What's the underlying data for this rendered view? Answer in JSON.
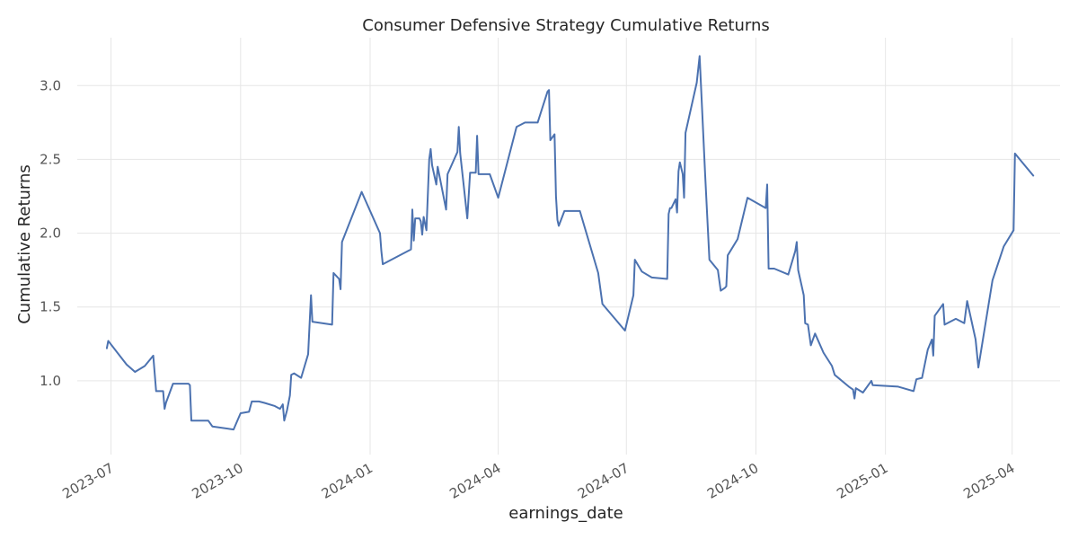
{
  "chart_data": {
    "type": "line",
    "title": "Consumer Defensive Strategy Cumulative Returns",
    "xlabel": "earnings_date",
    "ylabel": "Cumulative Returns",
    "x_tick_labels": [
      "2023-07",
      "2023-10",
      "2024-01",
      "2024-04",
      "2024-07",
      "2024-10",
      "2025-01",
      "2025-04"
    ],
    "y_tick_labels": [
      "1.0",
      "1.5",
      "2.0",
      "2.5",
      "3.0"
    ],
    "xlim": [
      "2023-06-07",
      "2025-05-05"
    ],
    "ylim": [
      0.5,
      3.3
    ],
    "y_ticks": [
      1.0,
      1.5,
      2.0,
      2.5,
      3.0
    ],
    "grid": true,
    "line_color": "#4c72b0",
    "series": [
      {
        "points": [
          [
            "2023-06-28",
            1.22
          ],
          [
            "2023-06-29",
            1.27
          ],
          [
            "2023-07-12",
            1.11
          ],
          [
            "2023-07-18",
            1.06
          ],
          [
            "2023-07-25",
            1.1
          ],
          [
            "2023-07-31",
            1.17
          ],
          [
            "2023-08-02",
            0.93
          ],
          [
            "2023-08-04",
            0.93
          ],
          [
            "2023-08-07",
            0.93
          ],
          [
            "2023-08-08",
            0.81
          ],
          [
            "2023-08-09",
            0.85
          ],
          [
            "2023-08-14",
            0.98
          ],
          [
            "2023-08-25",
            0.98
          ],
          [
            "2023-08-26",
            0.97
          ],
          [
            "2023-08-27",
            0.73
          ],
          [
            "2023-09-08",
            0.73
          ],
          [
            "2023-09-11",
            0.69
          ],
          [
            "2023-09-26",
            0.67
          ],
          [
            "2023-10-01",
            0.78
          ],
          [
            "2023-10-07",
            0.79
          ],
          [
            "2023-10-09",
            0.86
          ],
          [
            "2023-10-14",
            0.86
          ],
          [
            "2023-10-18",
            0.85
          ],
          [
            "2023-10-25",
            0.83
          ],
          [
            "2023-10-29",
            0.81
          ],
          [
            "2023-10-31",
            0.84
          ],
          [
            "2023-11-01",
            0.73
          ],
          [
            "2023-11-03",
            0.8
          ],
          [
            "2023-11-05",
            0.9
          ],
          [
            "2023-11-06",
            1.04
          ],
          [
            "2023-11-08",
            1.05
          ],
          [
            "2023-11-13",
            1.02
          ],
          [
            "2023-11-18",
            1.18
          ],
          [
            "2023-11-20",
            1.58
          ],
          [
            "2023-11-21",
            1.4
          ],
          [
            "2023-12-05",
            1.38
          ],
          [
            "2023-12-06",
            1.73
          ],
          [
            "2023-12-10",
            1.69
          ],
          [
            "2023-12-11",
            1.62
          ],
          [
            "2023-12-12",
            1.94
          ],
          [
            "2023-12-26",
            2.28
          ],
          [
            "2024-01-08",
            2.0
          ],
          [
            "2024-01-09",
            1.88
          ],
          [
            "2024-01-10",
            1.79
          ],
          [
            "2024-01-30",
            1.89
          ],
          [
            "2024-01-31",
            2.16
          ],
          [
            "2024-02-01",
            1.95
          ],
          [
            "2024-02-02",
            2.1
          ],
          [
            "2024-02-05",
            2.1
          ],
          [
            "2024-02-06",
            2.08
          ],
          [
            "2024-02-07",
            1.99
          ],
          [
            "2024-02-08",
            2.11
          ],
          [
            "2024-02-10",
            2.02
          ],
          [
            "2024-02-12",
            2.5
          ],
          [
            "2024-02-13",
            2.57
          ],
          [
            "2024-02-14",
            2.46
          ],
          [
            "2024-02-17",
            2.33
          ],
          [
            "2024-02-18",
            2.45
          ],
          [
            "2024-02-24",
            2.16
          ],
          [
            "2024-02-25",
            2.4
          ],
          [
            "2024-03-03",
            2.55
          ],
          [
            "2024-03-04",
            2.72
          ],
          [
            "2024-03-05",
            2.54
          ],
          [
            "2024-03-10",
            2.1
          ],
          [
            "2024-03-12",
            2.41
          ],
          [
            "2024-03-16",
            2.41
          ],
          [
            "2024-03-17",
            2.66
          ],
          [
            "2024-03-18",
            2.4
          ],
          [
            "2024-03-26",
            2.4
          ],
          [
            "2024-04-01",
            2.24
          ],
          [
            "2024-04-14",
            2.72
          ],
          [
            "2024-04-20",
            2.75
          ],
          [
            "2024-04-29",
            2.75
          ],
          [
            "2024-05-06",
            2.96
          ],
          [
            "2024-05-07",
            2.97
          ],
          [
            "2024-05-08",
            2.63
          ],
          [
            "2024-05-11",
            2.67
          ],
          [
            "2024-05-12",
            2.25
          ],
          [
            "2024-05-13",
            2.09
          ],
          [
            "2024-05-14",
            2.05
          ],
          [
            "2024-05-18",
            2.15
          ],
          [
            "2024-05-29",
            2.15
          ],
          [
            "2024-06-11",
            1.73
          ],
          [
            "2024-06-14",
            1.52
          ],
          [
            "2024-06-30",
            1.34
          ],
          [
            "2024-07-06",
            1.58
          ],
          [
            "2024-07-07",
            1.82
          ],
          [
            "2024-07-12",
            1.74
          ],
          [
            "2024-07-19",
            1.7
          ],
          [
            "2024-07-30",
            1.69
          ],
          [
            "2024-07-31",
            2.13
          ],
          [
            "2024-08-01",
            2.17
          ],
          [
            "2024-08-02",
            2.17
          ],
          [
            "2024-08-05",
            2.23
          ],
          [
            "2024-08-06",
            2.14
          ],
          [
            "2024-08-07",
            2.42
          ],
          [
            "2024-08-08",
            2.48
          ],
          [
            "2024-08-10",
            2.4
          ],
          [
            "2024-08-11",
            2.24
          ],
          [
            "2024-08-12",
            2.68
          ],
          [
            "2024-08-20",
            3.02
          ],
          [
            "2024-08-22",
            3.2
          ],
          [
            "2024-08-26",
            2.39
          ],
          [
            "2024-08-29",
            1.82
          ],
          [
            "2024-09-04",
            1.75
          ],
          [
            "2024-09-06",
            1.61
          ],
          [
            "2024-09-09",
            1.63
          ],
          [
            "2024-09-10",
            1.64
          ],
          [
            "2024-09-11",
            1.85
          ],
          [
            "2024-09-18",
            1.96
          ],
          [
            "2024-09-25",
            2.24
          ],
          [
            "2024-10-08",
            2.17
          ],
          [
            "2024-10-09",
            2.33
          ],
          [
            "2024-10-10",
            1.76
          ],
          [
            "2024-10-14",
            1.76
          ],
          [
            "2024-10-24",
            1.72
          ],
          [
            "2024-10-29",
            1.88
          ],
          [
            "2024-10-30",
            1.94
          ],
          [
            "2024-10-31",
            1.75
          ],
          [
            "2024-11-04",
            1.58
          ],
          [
            "2024-11-05",
            1.39
          ],
          [
            "2024-11-07",
            1.38
          ],
          [
            "2024-11-09",
            1.24
          ],
          [
            "2024-11-12",
            1.32
          ],
          [
            "2024-11-18",
            1.19
          ],
          [
            "2024-11-24",
            1.1
          ],
          [
            "2024-11-26",
            1.04
          ],
          [
            "2024-12-06",
            0.96
          ],
          [
            "2024-12-09",
            0.94
          ],
          [
            "2024-12-10",
            0.88
          ],
          [
            "2024-12-11",
            0.95
          ],
          [
            "2024-12-16",
            0.92
          ],
          [
            "2024-12-22",
            1.0
          ],
          [
            "2024-12-23",
            0.97
          ],
          [
            "2025-01-10",
            0.96
          ],
          [
            "2025-01-21",
            0.93
          ],
          [
            "2025-01-23",
            1.01
          ],
          [
            "2025-01-27",
            1.02
          ],
          [
            "2025-01-31",
            1.21
          ],
          [
            "2025-02-03",
            1.28
          ],
          [
            "2025-02-04",
            1.17
          ],
          [
            "2025-02-05",
            1.44
          ],
          [
            "2025-02-11",
            1.52
          ],
          [
            "2025-02-12",
            1.38
          ],
          [
            "2025-02-20",
            1.42
          ],
          [
            "2025-02-26",
            1.39
          ],
          [
            "2025-02-28",
            1.54
          ],
          [
            "2025-03-06",
            1.28
          ],
          [
            "2025-03-08",
            1.09
          ],
          [
            "2025-03-18",
            1.68
          ],
          [
            "2025-03-26",
            1.91
          ],
          [
            "2025-04-02",
            2.02
          ],
          [
            "2025-04-03",
            2.54
          ],
          [
            "2025-04-16",
            2.39
          ]
        ]
      }
    ]
  }
}
